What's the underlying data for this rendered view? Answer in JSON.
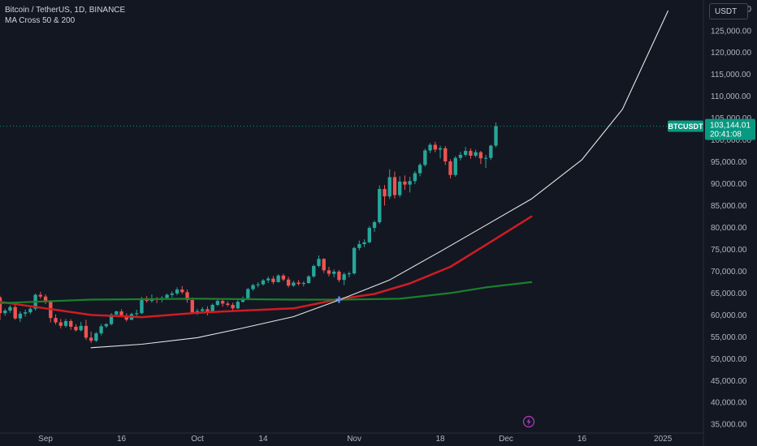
{
  "header": {
    "symbol_line": "Bitcoin / TetherUS, 1D, BINANCE",
    "indicator_line": "MA Cross 50 & 200",
    "currency_button": "USDT"
  },
  "price_marker": {
    "symbol_tag": "BTCUSDT",
    "price_label": "103,144.01",
    "countdown_label": "20:41:08",
    "value": 103144.01
  },
  "colors": {
    "background": "#131722",
    "up": "#26a69a",
    "down": "#ef5350",
    "ma50": "#d01c22",
    "ma200": "#1b7f2d",
    "curve": "#e6e6e6",
    "accent": "#089981"
  },
  "chart_data": {
    "type": "candlestick",
    "symbol": "BTCUSDT",
    "timeframe": "1D",
    "exchange": "BINANCE",
    "ylim": [
      33000,
      132000
    ],
    "y_ticks": [
      35000,
      40000,
      45000,
      50000,
      55000,
      60000,
      65000,
      70000,
      75000,
      80000,
      85000,
      90000,
      95000,
      100000,
      105000,
      110000,
      115000,
      120000,
      125000,
      130000
    ],
    "y_tick_labels": [
      "35,000.00",
      "40,000.00",
      "45,000.00",
      "50,000.00",
      "55,000.00",
      "60,000.00",
      "65,000.00",
      "70,000.00",
      "75,000.00",
      "80,000.00",
      "85,000.00",
      "90,000.00",
      "95,000.00",
      "100,000.00",
      "105,000.00",
      "110,000.00",
      "115,000.00",
      "120,000.00",
      "125,000.00",
      "130,000.00"
    ],
    "x_range": [
      "2024-08-23",
      "2025-01-09"
    ],
    "x_ticks": [
      {
        "label": "Sep",
        "date": "2024-09-01"
      },
      {
        "label": "16",
        "date": "2024-09-16"
      },
      {
        "label": "Oct",
        "date": "2024-10-01"
      },
      {
        "label": "14",
        "date": "2024-10-14"
      },
      {
        "label": "Nov",
        "date": "2024-11-01"
      },
      {
        "label": "18",
        "date": "2024-11-18"
      },
      {
        "label": "Dec",
        "date": "2024-12-01"
      },
      {
        "label": "16",
        "date": "2024-12-16"
      },
      {
        "label": "2025",
        "date": "2025-01-01"
      }
    ],
    "first_candle_date": "2024-08-23",
    "candles": [
      [
        64000,
        64400,
        58800,
        60400
      ],
      [
        60400,
        61400,
        59800,
        61000
      ],
      [
        61000,
        62200,
        60500,
        61800
      ],
      [
        61800,
        62300,
        58900,
        59200
      ],
      [
        59200,
        60800,
        58400,
        60300
      ],
      [
        60300,
        61200,
        59600,
        60600
      ],
      [
        60600,
        61700,
        60200,
        61400
      ],
      [
        61400,
        64900,
        61000,
        64600
      ],
      [
        64600,
        65300,
        63700,
        64200
      ],
      [
        64200,
        64700,
        62500,
        63000
      ],
      [
        63000,
        63400,
        58300,
        59300
      ],
      [
        59300,
        60100,
        57800,
        58300
      ],
      [
        58300,
        59100,
        56900,
        57500
      ],
      [
        57500,
        59100,
        57100,
        58600
      ],
      [
        58600,
        59000,
        56600,
        57300
      ],
      [
        57300,
        57900,
        56200,
        56500
      ],
      [
        56500,
        58400,
        56200,
        57500
      ],
      [
        57500,
        58900,
        54300,
        54800
      ],
      [
        54800,
        56200,
        53600,
        54100
      ],
      [
        54100,
        56100,
        53800,
        55800
      ],
      [
        55800,
        57900,
        55300,
        57400
      ],
      [
        57400,
        58100,
        57000,
        57900
      ],
      [
        57900,
        60400,
        57600,
        60100
      ],
      [
        60100,
        61000,
        59800,
        60800
      ],
      [
        60800,
        61300,
        59500,
        59900
      ],
      [
        59900,
        60400,
        58500,
        58900
      ],
      [
        58900,
        60500,
        58800,
        60200
      ],
      [
        60200,
        61200,
        59700,
        60400
      ],
      [
        60400,
        64100,
        60200,
        63800
      ],
      [
        63800,
        64300,
        62800,
        63200
      ],
      [
        63200,
        64700,
        62800,
        63700
      ],
      [
        63700,
        64100,
        62700,
        63500
      ],
      [
        63500,
        64300,
        62900,
        63900
      ],
      [
        63900,
        64900,
        63600,
        64600
      ],
      [
        64600,
        65400,
        64000,
        64900
      ],
      [
        64900,
        66300,
        64500,
        65800
      ],
      [
        65800,
        66600,
        64800,
        65200
      ],
      [
        65200,
        65800,
        62800,
        63400
      ],
      [
        63400,
        64000,
        60200,
        60600
      ],
      [
        60600,
        61400,
        60000,
        60900
      ],
      [
        60900,
        61800,
        60600,
        61300
      ],
      [
        61300,
        62000,
        59900,
        60700
      ],
      [
        60700,
        62600,
        60400,
        62300
      ],
      [
        62300,
        63600,
        62000,
        63200
      ],
      [
        63200,
        63800,
        61900,
        62600
      ],
      [
        62600,
        63100,
        61900,
        62300
      ],
      [
        62300,
        62800,
        61000,
        61500
      ],
      [
        61500,
        63400,
        61300,
        63000
      ],
      [
        63000,
        64200,
        62800,
        63800
      ],
      [
        63800,
        66200,
        63500,
        65900
      ],
      [
        65900,
        67100,
        65500,
        66800
      ],
      [
        66800,
        67500,
        66300,
        67000
      ],
      [
        67000,
        68200,
        66700,
        67900
      ],
      [
        67900,
        68800,
        67300,
        68300
      ],
      [
        68300,
        68900,
        67000,
        67500
      ],
      [
        67500,
        69300,
        67400,
        69000
      ],
      [
        69000,
        69400,
        67700,
        68100
      ],
      [
        68100,
        68700,
        66300,
        66700
      ],
      [
        66700,
        67800,
        66400,
        67400
      ],
      [
        67400,
        68000,
        66700,
        67100
      ],
      [
        67100,
        67700,
        66500,
        67300
      ],
      [
        67300,
        69100,
        67100,
        68800
      ],
      [
        68800,
        71500,
        68500,
        71200
      ],
      [
        71200,
        73600,
        70900,
        72800
      ],
      [
        72800,
        73000,
        69600,
        70200
      ],
      [
        70200,
        71000,
        68800,
        69400
      ],
      [
        69400,
        70400,
        68600,
        69900
      ],
      [
        69900,
        70300,
        67500,
        68000
      ],
      [
        68000,
        69700,
        66800,
        69300
      ],
      [
        69300,
        69900,
        68600,
        69500
      ],
      [
        69500,
        75600,
        69200,
        75300
      ],
      [
        75300,
        77000,
        74800,
        76200
      ],
      [
        76200,
        77300,
        75500,
        76600
      ],
      [
        76600,
        80300,
        76400,
        79900
      ],
      [
        79900,
        81600,
        79000,
        81200
      ],
      [
        81200,
        89600,
        80800,
        88800
      ],
      [
        88800,
        89700,
        85000,
        87100
      ],
      [
        87100,
        93300,
        86500,
        91500
      ],
      [
        91500,
        92800,
        86600,
        87400
      ],
      [
        87400,
        91700,
        86900,
        90500
      ],
      [
        90500,
        91900,
        88600,
        89800
      ],
      [
        89800,
        91600,
        88000,
        90600
      ],
      [
        90600,
        92900,
        89900,
        92400
      ],
      [
        92400,
        94700,
        91700,
        94300
      ],
      [
        94300,
        98000,
        93900,
        97600
      ],
      [
        97600,
        99300,
        97000,
        98900
      ],
      [
        98900,
        99600,
        97200,
        97800
      ],
      [
        97800,
        98700,
        95800,
        98100
      ],
      [
        98100,
        98600,
        94300,
        95100
      ],
      [
        95100,
        95600,
        91200,
        92000
      ],
      [
        92000,
        96300,
        91600,
        95900
      ],
      [
        95900,
        97300,
        95300,
        96600
      ],
      [
        96600,
        98400,
        96200,
        97500
      ],
      [
        97500,
        98100,
        95700,
        96400
      ],
      [
        96400,
        97800,
        96000,
        97200
      ],
      [
        97200,
        97500,
        94500,
        95800
      ],
      [
        95800,
        96600,
        93600,
        95900
      ],
      [
        95900,
        98900,
        95400,
        98700
      ],
      [
        98700,
        104000,
        98300,
        103144.01
      ]
    ],
    "series": [
      {
        "name": "MA 50",
        "x": [
          "2024-08-23",
          "2024-09-01",
          "2024-09-10",
          "2024-09-20",
          "2024-10-01",
          "2024-10-10",
          "2024-10-20",
          "2024-10-29",
          "2024-11-05",
          "2024-11-12",
          "2024-11-20",
          "2024-11-27",
          "2024-12-06"
        ],
        "y": [
          63000,
          61500,
          60000,
          59500,
          60500,
          61000,
          61500,
          63600,
          64800,
          67200,
          71000,
          76000,
          82500
        ]
      },
      {
        "name": "MA 200",
        "x": [
          "2024-08-23",
          "2024-09-10",
          "2024-10-01",
          "2024-10-20",
          "2024-10-29",
          "2024-11-10",
          "2024-11-20",
          "2024-11-27",
          "2024-12-06"
        ],
        "y": [
          62700,
          63500,
          63700,
          63500,
          63500,
          63700,
          65000,
          66300,
          67500
        ]
      },
      {
        "name": "Curve",
        "x": [
          "2024-09-10",
          "2024-09-20",
          "2024-10-01",
          "2024-10-10",
          "2024-10-20",
          "2024-10-29",
          "2024-11-08",
          "2024-11-18",
          "2024-11-27",
          "2024-12-06",
          "2024-12-16",
          "2024-12-24",
          "2025-01-02"
        ],
        "y": [
          52500,
          53300,
          54800,
          57000,
          59600,
          63400,
          68000,
          74500,
          80500,
          86500,
          95500,
          107000,
          129500
        ]
      }
    ],
    "cross_point": {
      "date": "2024-10-29",
      "value": 63500
    },
    "last_price_line": 103144.01,
    "grid": false,
    "legend_position": "top-left"
  }
}
